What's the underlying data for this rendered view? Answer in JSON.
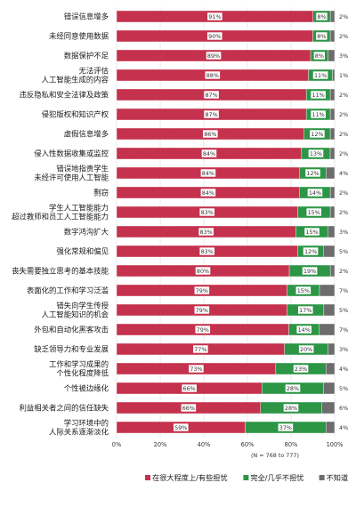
{
  "chart_data": {
    "type": "bar",
    "stacked": true,
    "orientation": "horizontal",
    "categories": [
      [
        "错误信息增多"
      ],
      [
        "未经同意使用数据"
      ],
      [
        "数据保护不足"
      ],
      [
        "无法评估",
        "人工智能生成的内容"
      ],
      [
        "违反隐私和安全法律及政策"
      ],
      [
        "侵犯版权和知识产权"
      ],
      [
        "虚假信息增多"
      ],
      [
        "侵入性数据收集或监控"
      ],
      [
        "错误地指责学生",
        "未经许可使用人工智能"
      ],
      [
        "剽窃"
      ],
      [
        "学生人工智能能力",
        "超过教师和员工人工智能能力"
      ],
      [
        "数字鸿沟扩大"
      ],
      [
        "强化常规和偏见"
      ],
      [
        "丧失需要独立思考的基本技能"
      ],
      [
        "表面化的工作和学习泛滥"
      ],
      [
        "错失向学生传授",
        "人工智能知识的机会"
      ],
      [
        "外包和自动化黑客攻击"
      ],
      [
        "缺乏领导力和专业发展"
      ],
      [
        "工作和学习成果的",
        "个性化程度降低"
      ],
      [
        "个性被边缘化"
      ],
      [
        "利益相关者之间的信任缺失"
      ],
      [
        "学习环境中的",
        "人际关系逐渐淡化"
      ]
    ],
    "series": [
      {
        "name": "在很大程度上/有些担忧",
        "color": "#c8334f",
        "values": [
          91,
          90,
          89,
          88,
          87,
          87,
          86,
          84,
          84,
          84,
          83,
          83,
          83,
          80,
          79,
          79,
          79,
          77,
          73,
          66,
          66,
          59
        ],
        "labels": [
          "91%",
          "90%",
          "89%",
          "88%",
          "87%",
          "87%",
          "86%",
          "84%",
          "84%",
          "84%",
          "83%",
          "83%",
          "83%",
          "80%",
          "79%",
          "79%",
          "79%",
          "77%",
          "73%",
          "66%",
          "66%",
          "59%"
        ]
      },
      {
        "name": "完全/几乎不担忧",
        "color": "#2e9a48",
        "values": [
          8,
          8,
          8,
          11,
          11,
          11,
          12,
          13,
          12,
          14,
          15,
          15,
          12,
          19,
          15,
          17,
          14,
          20,
          23,
          28,
          28,
          37
        ],
        "labels": [
          "8%",
          "8%",
          "8%",
          "11%",
          "11%",
          "11%",
          "12%",
          "13%",
          "12%",
          "14%",
          "15%",
          "15%",
          "12%",
          "19%",
          "15%",
          "17%",
          "14%",
          "20%",
          "23%",
          "28%",
          "28%",
          "37%"
        ]
      },
      {
        "name": "不知道",
        "color": "#6e6e6e",
        "values": [
          2,
          2,
          3,
          1,
          2,
          2,
          2,
          2,
          4,
          2,
          2,
          3,
          5,
          2,
          7,
          5,
          7,
          3,
          4,
          5,
          6,
          4
        ],
        "labels": [
          "2%",
          "2%",
          "3%",
          "1%",
          "2%",
          "2%",
          "2%",
          "2%",
          "4%",
          "2%",
          "2%",
          "3%",
          "5%",
          "2%",
          "7%",
          "5%",
          "7%",
          "3%",
          "4%",
          "5%",
          "6%",
          "4%"
        ]
      }
    ],
    "x_ticks": [
      "0%",
      "20%",
      "40%",
      "60%",
      "80%",
      "100%"
    ],
    "xlim": [
      0,
      100
    ],
    "sample_note": "(N = 768 to 777)",
    "legend_position": "bottom"
  }
}
